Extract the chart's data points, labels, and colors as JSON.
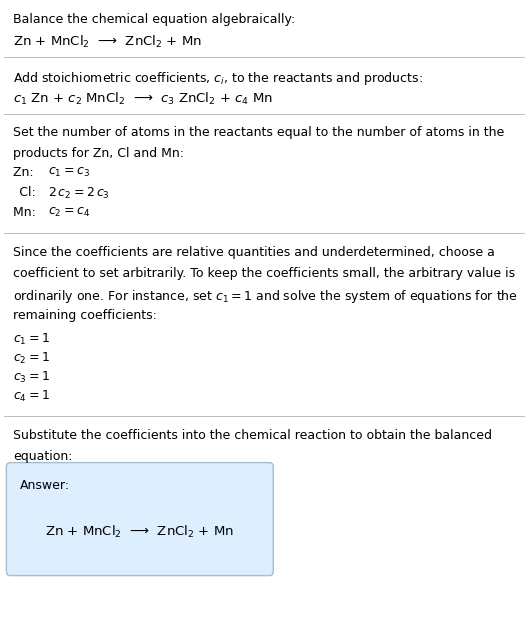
{
  "fig_width": 5.28,
  "fig_height": 6.32,
  "dpi": 100,
  "bg_color": "#ffffff",
  "text_color": "#000000",
  "answer_box_color": "#ddeeff",
  "answer_box_edge": "#aabbcc",
  "divider_color": "#bbbbbb",
  "section1_header": "Balance the chemical equation algebraically:",
  "section1_eq": "Zn + MnCl$_2$  ⟶  ZnCl$_2$ + Mn",
  "section2_header": "Add stoichiometric coefficients, $c_i$, to the reactants and products:",
  "section2_eq": "$c_1$ Zn + $c_2$ MnCl$_2$  ⟶  $c_3$ ZnCl$_2$ + $c_4$ Mn",
  "section3_header_line1": "Set the number of atoms in the reactants equal to the number of atoms in the",
  "section3_header_line2": "products for Zn, Cl and Mn:",
  "section3_lines": [
    [
      "Zn: ",
      "$c_1 = c_3$"
    ],
    [
      " Cl: ",
      "$2\\,c_2 = 2\\,c_3$"
    ],
    [
      "Mn: ",
      "$c_2 = c_4$"
    ]
  ],
  "section4_header_lines": [
    "Since the coefficients are relative quantities and underdetermined, choose a",
    "coefficient to set arbitrarily. To keep the coefficients small, the arbitrary value is",
    "ordinarily one. For instance, set $c_1 = 1$ and solve the system of equations for the",
    "remaining coefficients:"
  ],
  "section4_coeff_lines": [
    "$c_1 = 1$",
    "$c_2 = 1$",
    "$c_3 = 1$",
    "$c_4 = 1$"
  ],
  "section5_header_line1": "Substitute the coefficients into the chemical reaction to obtain the balanced",
  "section5_header_line2": "equation:",
  "answer_label": "Answer:",
  "answer_eq": "Zn + MnCl$_2$  ⟶  ZnCl$_2$ + Mn"
}
